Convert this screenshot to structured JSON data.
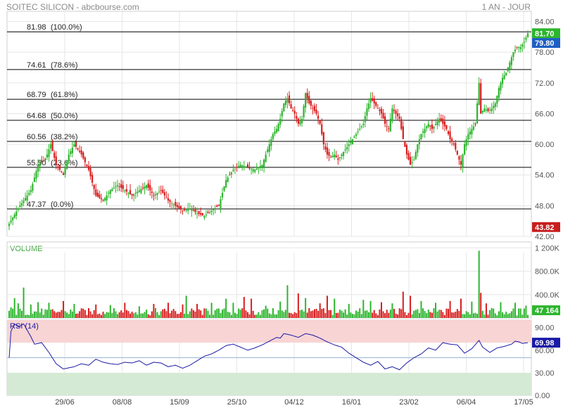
{
  "header": {
    "title": "SOITEC SILICON - abcbourse.com",
    "period": "1 AN - JOUR"
  },
  "colors": {
    "up": "#2db52d",
    "down": "#d81e1e",
    "rsi_line": "#1a1aa6",
    "rsi_overbought": "#f8d4d4",
    "rsi_oversold": "#d4ead4",
    "volume_label": "#3aa63a",
    "fib_line": "#000000",
    "grid": "#e6e6e6"
  },
  "chart_data": [
    {
      "type": "candlestick",
      "title": "SOITEC SILICON",
      "ylim": [
        42,
        86
      ],
      "y_ticks": [
        "84.00",
        "78.00",
        "72.00",
        "66.00",
        "60.00",
        "54.00",
        "48.00",
        "42.00"
      ],
      "x_ticks": [
        "29/06",
        "08/08",
        "15/09",
        "25/10",
        "04/12",
        "16/01",
        "23/02",
        "06/04",
        "17/05"
      ],
      "fibonacci_levels": [
        {
          "value": 81.98,
          "label": "81.98",
          "pct": "(100.0%)"
        },
        {
          "value": 74.61,
          "label": "74.61",
          "pct": "(78.6%)"
        },
        {
          "value": 68.79,
          "label": "68.79",
          "pct": "(61.8%)"
        },
        {
          "value": 64.68,
          "label": "64.68",
          "pct": "(50.0%)"
        },
        {
          "value": 60.56,
          "label": "60.56",
          "pct": "(38.2%)"
        },
        {
          "value": 55.5,
          "label": "55.50",
          "pct": "(23.6%)"
        },
        {
          "value": 47.37,
          "label": "47.37",
          "pct": "(0.0%)"
        }
      ],
      "price_tags": [
        {
          "value": 81.7,
          "label": "81.70",
          "color": "#2db52d"
        },
        {
          "value": 79.8,
          "label": "79.80",
          "color": "#1d5fc4"
        },
        {
          "value": 43.82,
          "label": "43.82",
          "color": "#c81e1e"
        }
      ],
      "close_path": [
        [
          0,
          44.5
        ],
        [
          6,
          48
        ],
        [
          12,
          51
        ],
        [
          16,
          56
        ],
        [
          20,
          57
        ],
        [
          23,
          60
        ],
        [
          26,
          56
        ],
        [
          30,
          54
        ],
        [
          33,
          58
        ],
        [
          36,
          60
        ],
        [
          40,
          58
        ],
        [
          44,
          55
        ],
        [
          48,
          50
        ],
        [
          52,
          49
        ],
        [
          56,
          51
        ],
        [
          60,
          52
        ],
        [
          64,
          51
        ],
        [
          68,
          50
        ],
        [
          72,
          51
        ],
        [
          76,
          52
        ],
        [
          80,
          50
        ],
        [
          84,
          51
        ],
        [
          88,
          49
        ],
        [
          92,
          48
        ],
        [
          96,
          47
        ],
        [
          100,
          47.5
        ],
        [
          104,
          46.5
        ],
        [
          108,
          46
        ],
        [
          112,
          47
        ],
        [
          116,
          48
        ],
        [
          120,
          53
        ],
        [
          124,
          55
        ],
        [
          128,
          56
        ],
        [
          132,
          55.5
        ],
        [
          136,
          55
        ],
        [
          140,
          56
        ],
        [
          142,
          58
        ],
        [
          144,
          60
        ],
        [
          146,
          62
        ],
        [
          148,
          63
        ],
        [
          150,
          65
        ],
        [
          152,
          68
        ],
        [
          154,
          69
        ],
        [
          156,
          67
        ],
        [
          158,
          66
        ],
        [
          160,
          64
        ],
        [
          162,
          65
        ],
        [
          164,
          70
        ],
        [
          166,
          68
        ],
        [
          168,
          67
        ],
        [
          170,
          66
        ],
        [
          172,
          64
        ],
        [
          174,
          60
        ],
        [
          176,
          58
        ],
        [
          178,
          57.5
        ],
        [
          180,
          58
        ],
        [
          182,
          57
        ],
        [
          184,
          58
        ],
        [
          186,
          59
        ],
        [
          188,
          60
        ],
        [
          190,
          61
        ],
        [
          192,
          62
        ],
        [
          194,
          63
        ],
        [
          196,
          64
        ],
        [
          198,
          67
        ],
        [
          200,
          69
        ],
        [
          202,
          68
        ],
        [
          204,
          67
        ],
        [
          206,
          66
        ],
        [
          208,
          64
        ],
        [
          210,
          63
        ],
        [
          212,
          67
        ],
        [
          214,
          66
        ],
        [
          216,
          65
        ],
        [
          218,
          61
        ],
        [
          220,
          58
        ],
        [
          222,
          56
        ],
        [
          224,
          57
        ],
        [
          226,
          60
        ],
        [
          228,
          62
        ],
        [
          230,
          63
        ],
        [
          232,
          64
        ],
        [
          234,
          63
        ],
        [
          236,
          64
        ],
        [
          238,
          65
        ],
        [
          240,
          64
        ],
        [
          242,
          63
        ],
        [
          244,
          61
        ],
        [
          246,
          60
        ],
        [
          248,
          58
        ],
        [
          250,
          56
        ],
        [
          252,
          60
        ],
        [
          254,
          62
        ],
        [
          256,
          63
        ],
        [
          258,
          64
        ],
        [
          260,
          72
        ],
        [
          261,
          66
        ],
        [
          263,
          67
        ],
        [
          265,
          66.5
        ],
        [
          267,
          67
        ],
        [
          269,
          68
        ],
        [
          271,
          71
        ],
        [
          273,
          73
        ],
        [
          275,
          74
        ],
        [
          277,
          76
        ],
        [
          279,
          78
        ],
        [
          281,
          79
        ],
        [
          283,
          79
        ],
        [
          285,
          80
        ],
        [
          287,
          81.7
        ]
      ],
      "volume": {
        "label": "VOLUME",
        "ylim": [
          0,
          1300000
        ],
        "ticks": [
          "1 200K",
          "800.0K",
          "400.0K"
        ],
        "last": "47 164",
        "spikes": [
          [
            1,
            180000
          ],
          [
            3,
            340000
          ],
          [
            5,
            250000
          ],
          [
            8,
            520000
          ],
          [
            12,
            230000
          ],
          [
            16,
            270000
          ],
          [
            22,
            260000
          ],
          [
            30,
            290000
          ],
          [
            36,
            240000
          ],
          [
            48,
            230000
          ],
          [
            56,
            220000
          ],
          [
            64,
            260000
          ],
          [
            72,
            200000
          ],
          [
            80,
            240000
          ],
          [
            88,
            260000
          ],
          [
            96,
            230000
          ],
          [
            98,
            380000
          ],
          [
            104,
            240000
          ],
          [
            112,
            260000
          ],
          [
            120,
            330000
          ],
          [
            124,
            260000
          ],
          [
            130,
            360000
          ],
          [
            134,
            330000
          ],
          [
            142,
            210000
          ],
          [
            150,
            280000
          ],
          [
            154,
            560000
          ],
          [
            160,
            420000
          ],
          [
            164,
            340000
          ],
          [
            172,
            250000
          ],
          [
            176,
            380000
          ],
          [
            180,
            330000
          ],
          [
            188,
            240000
          ],
          [
            196,
            310000
          ],
          [
            200,
            290000
          ],
          [
            206,
            270000
          ],
          [
            212,
            250000
          ],
          [
            218,
            450000
          ],
          [
            222,
            380000
          ],
          [
            228,
            290000
          ],
          [
            236,
            260000
          ],
          [
            244,
            290000
          ],
          [
            250,
            330000
          ],
          [
            256,
            280000
          ],
          [
            260,
            1150000
          ],
          [
            261,
            430000
          ],
          [
            264,
            250000
          ],
          [
            272,
            270000
          ],
          [
            280,
            260000
          ],
          [
            286,
            210000
          ]
        ]
      },
      "rsi": {
        "label": "RSI (14)",
        "ylim": [
          0,
          100
        ],
        "ticks": [
          "90.00",
          "60.00",
          "30.00",
          "0.00"
        ],
        "overbought": 70,
        "oversold": 30,
        "mid": 50,
        "last": "69.98",
        "path": [
          [
            0,
            50
          ],
          [
            1,
            85
          ],
          [
            3,
            95
          ],
          [
            5,
            91
          ],
          [
            8,
            95
          ],
          [
            12,
            78
          ],
          [
            14,
            68
          ],
          [
            18,
            70
          ],
          [
            22,
            57
          ],
          [
            26,
            42
          ],
          [
            30,
            35
          ],
          [
            36,
            38
          ],
          [
            40,
            42
          ],
          [
            44,
            40
          ],
          [
            48,
            48
          ],
          [
            52,
            44
          ],
          [
            56,
            42
          ],
          [
            60,
            41
          ],
          [
            64,
            44
          ],
          [
            68,
            43
          ],
          [
            72,
            46
          ],
          [
            76,
            40
          ],
          [
            80,
            44
          ],
          [
            84,
            43
          ],
          [
            88,
            38
          ],
          [
            92,
            40
          ],
          [
            96,
            36
          ],
          [
            100,
            40
          ],
          [
            104,
            46
          ],
          [
            108,
            52
          ],
          [
            112,
            55
          ],
          [
            116,
            60
          ],
          [
            120,
            66
          ],
          [
            124,
            68
          ],
          [
            128,
            64
          ],
          [
            132,
            60
          ],
          [
            136,
            63
          ],
          [
            140,
            67
          ],
          [
            144,
            72
          ],
          [
            148,
            77
          ],
          [
            150,
            76
          ],
          [
            152,
            82
          ],
          [
            156,
            80
          ],
          [
            160,
            77
          ],
          [
            164,
            82
          ],
          [
            168,
            80
          ],
          [
            172,
            76
          ],
          [
            176,
            71
          ],
          [
            180,
            67
          ],
          [
            184,
            64
          ],
          [
            188,
            56
          ],
          [
            192,
            50
          ],
          [
            196,
            44
          ],
          [
            200,
            40
          ],
          [
            204,
            45
          ],
          [
            208,
            35
          ],
          [
            212,
            38
          ],
          [
            216,
            34
          ],
          [
            220,
            43
          ],
          [
            224,
            50
          ],
          [
            228,
            55
          ],
          [
            232,
            63
          ],
          [
            236,
            60
          ],
          [
            240,
            70
          ],
          [
            244,
            68
          ],
          [
            248,
            67
          ],
          [
            252,
            56
          ],
          [
            256,
            62
          ],
          [
            260,
            73
          ],
          [
            262,
            64
          ],
          [
            266,
            57
          ],
          [
            270,
            63
          ],
          [
            274,
            65
          ],
          [
            278,
            68
          ],
          [
            280,
            72
          ],
          [
            282,
            71
          ],
          [
            284,
            69
          ],
          [
            287,
            69.98
          ]
        ]
      }
    }
  ]
}
